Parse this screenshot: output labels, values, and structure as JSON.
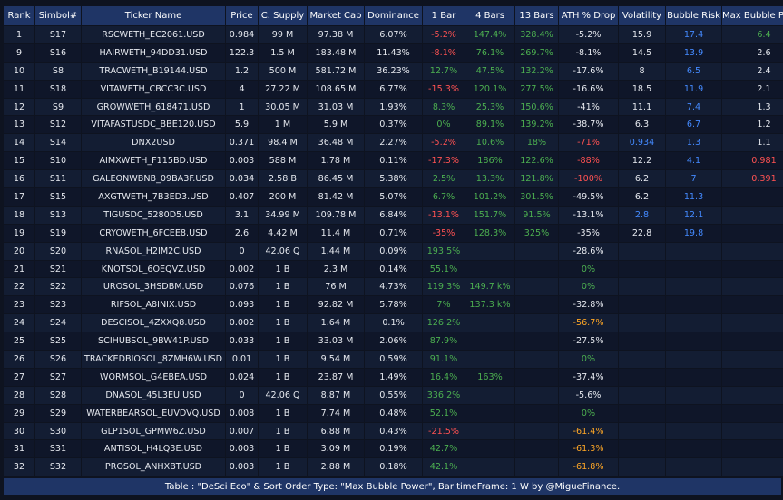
{
  "headers": [
    "Rank",
    "Simbol#",
    "Ticker Name",
    "Price",
    "C. Supply",
    "Market Cap",
    "Dominance",
    "1 Bar",
    "4 Bars",
    "13 Bars",
    "ATH % Drop",
    "Volatility",
    "Bubble Risk",
    "Max Bubble Power"
  ],
  "rows": [
    {
      "rank": "1",
      "sym": "S17",
      "name": "RSCWETH_EC2061.USD",
      "price": "0.984",
      "supply": "99 M",
      "mcap": "97.38 M",
      "dom": "6.07%",
      "b1": "-5.2%",
      "b1c": "neg",
      "b4": "147.4%",
      "b4c": "pos",
      "b13": "328.4%",
      "b13c": "pos",
      "ath": "-5.2%",
      "athc": "wht",
      "vol": "15.9",
      "volc": "wht",
      "risk": "17.4",
      "riskc": "blue",
      "power": "6.4",
      "powerc": "pos"
    },
    {
      "rank": "9",
      "sym": "S16",
      "name": "HAIRWETH_94DD31.USD",
      "price": "122.3",
      "supply": "1.5 M",
      "mcap": "183.48 M",
      "dom": "11.43%",
      "b1": "-8.1%",
      "b1c": "neg",
      "b4": "76.1%",
      "b4c": "pos",
      "b13": "269.7%",
      "b13c": "pos",
      "ath": "-8.1%",
      "athc": "wht",
      "vol": "14.5",
      "volc": "wht",
      "risk": "13.9",
      "riskc": "blue",
      "power": "2.6",
      "powerc": "wht"
    },
    {
      "rank": "10",
      "sym": "S8",
      "name": "TRACWETH_B19144.USD",
      "price": "1.2",
      "supply": "500 M",
      "mcap": "581.72 M",
      "dom": "36.23%",
      "b1": "12.7%",
      "b1c": "pos",
      "b4": "47.5%",
      "b4c": "pos",
      "b13": "132.2%",
      "b13c": "pos",
      "ath": "-17.6%",
      "athc": "wht",
      "vol": "8",
      "volc": "wht",
      "risk": "6.5",
      "riskc": "blue",
      "power": "2.4",
      "powerc": "wht"
    },
    {
      "rank": "11",
      "sym": "S18",
      "name": "VITAWETH_CBCC3C.USD",
      "price": "4",
      "supply": "27.22 M",
      "mcap": "108.65 M",
      "dom": "6.77%",
      "b1": "-15.3%",
      "b1c": "neg",
      "b4": "120.1%",
      "b4c": "pos",
      "b13": "277.5%",
      "b13c": "pos",
      "ath": "-16.6%",
      "athc": "wht",
      "vol": "18.5",
      "volc": "wht",
      "risk": "11.9",
      "riskc": "blue",
      "power": "2.1",
      "powerc": "wht"
    },
    {
      "rank": "12",
      "sym": "S9",
      "name": "GROWWETH_618471.USD",
      "price": "1",
      "supply": "30.05 M",
      "mcap": "31.03 M",
      "dom": "1.93%",
      "b1": "8.3%",
      "b1c": "pos",
      "b4": "25.3%",
      "b4c": "pos",
      "b13": "150.6%",
      "b13c": "pos",
      "ath": "-41%",
      "athc": "wht",
      "vol": "11.1",
      "volc": "wht",
      "risk": "7.4",
      "riskc": "blue",
      "power": "1.3",
      "powerc": "wht"
    },
    {
      "rank": "13",
      "sym": "S12",
      "name": "VITAFASTUSDC_BBE120.USD",
      "price": "5.9",
      "supply": "1 M",
      "mcap": "5.9 M",
      "dom": "0.37%",
      "b1": "0%",
      "b1c": "pos",
      "b4": "89.1%",
      "b4c": "pos",
      "b13": "139.2%",
      "b13c": "pos",
      "ath": "-38.7%",
      "athc": "wht",
      "vol": "6.3",
      "volc": "wht",
      "risk": "6.7",
      "riskc": "blue",
      "power": "1.2",
      "powerc": "wht"
    },
    {
      "rank": "14",
      "sym": "S14",
      "name": "DNX2USD",
      "price": "0.371",
      "supply": "98.4 M",
      "mcap": "36.48 M",
      "dom": "2.27%",
      "b1": "-5.2%",
      "b1c": "neg",
      "b4": "10.6%",
      "b4c": "pos",
      "b13": "18%",
      "b13c": "pos",
      "ath": "-71%",
      "athc": "red",
      "vol": "0.934",
      "volc": "blue",
      "risk": "1.3",
      "riskc": "blue",
      "power": "1.1",
      "powerc": "wht"
    },
    {
      "rank": "15",
      "sym": "S10",
      "name": "AIMXWETH_F115BD.USD",
      "price": "0.003",
      "supply": "588 M",
      "mcap": "1.78 M",
      "dom": "0.11%",
      "b1": "-17.3%",
      "b1c": "neg",
      "b4": "186%",
      "b4c": "pos",
      "b13": "122.6%",
      "b13c": "pos",
      "ath": "-88%",
      "athc": "red",
      "vol": "12.2",
      "volc": "wht",
      "risk": "4.1",
      "riskc": "blue",
      "power": "0.981",
      "powerc": "red"
    },
    {
      "rank": "16",
      "sym": "S11",
      "name": "GALEONWBNB_09BA3F.USD",
      "price": "0.034",
      "supply": "2.58 B",
      "mcap": "86.45 M",
      "dom": "5.38%",
      "b1": "2.5%",
      "b1c": "pos",
      "b4": "13.3%",
      "b4c": "pos",
      "b13": "121.8%",
      "b13c": "pos",
      "ath": "-100%",
      "athc": "red",
      "vol": "6.2",
      "volc": "wht",
      "risk": "7",
      "riskc": "blue",
      "power": "0.391",
      "powerc": "red"
    },
    {
      "rank": "17",
      "sym": "S15",
      "name": "AXGTWETH_7B3ED3.USD",
      "price": "0.407",
      "supply": "200 M",
      "mcap": "81.42 M",
      "dom": "5.07%",
      "b1": "6.7%",
      "b1c": "pos",
      "b4": "101.2%",
      "b4c": "pos",
      "b13": "301.5%",
      "b13c": "pos",
      "ath": "-49.5%",
      "athc": "wht",
      "vol": "6.2",
      "volc": "wht",
      "risk": "11.3",
      "riskc": "blue",
      "power": "",
      "powerc": "empty"
    },
    {
      "rank": "18",
      "sym": "S13",
      "name": "TIGUSDC_5280D5.USD",
      "price": "3.1",
      "supply": "34.99 M",
      "mcap": "109.78 M",
      "dom": "6.84%",
      "b1": "-13.1%",
      "b1c": "neg",
      "b4": "151.7%",
      "b4c": "pos",
      "b13": "91.5%",
      "b13c": "pos",
      "ath": "-13.1%",
      "athc": "wht",
      "vol": "2.8",
      "volc": "blue",
      "risk": "12.1",
      "riskc": "blue",
      "power": "",
      "powerc": "empty"
    },
    {
      "rank": "19",
      "sym": "S19",
      "name": "CRYOWETH_6FCEE8.USD",
      "price": "2.6",
      "supply": "4.42 M",
      "mcap": "11.4 M",
      "dom": "0.71%",
      "b1": "-35%",
      "b1c": "neg",
      "b4": "128.3%",
      "b4c": "pos",
      "b13": "325%",
      "b13c": "pos",
      "ath": "-35%",
      "athc": "wht",
      "vol": "22.8",
      "volc": "wht",
      "risk": "19.8",
      "riskc": "blue",
      "power": "",
      "powerc": "empty"
    },
    {
      "rank": "20",
      "sym": "S20",
      "name": "RNASOL_H2IM2C.USD",
      "price": "0",
      "supply": "42.06 Q",
      "mcap": "1.44 M",
      "dom": "0.09%",
      "b1": "193.5%",
      "b1c": "pos",
      "b4": "",
      "b4c": "empty",
      "b13": "",
      "b13c": "empty",
      "ath": "-28.6%",
      "athc": "wht",
      "vol": "",
      "volc": "empty",
      "risk": "",
      "riskc": "empty",
      "power": "",
      "powerc": "empty"
    },
    {
      "rank": "21",
      "sym": "S21",
      "name": "KNOTSOL_6OEQVZ.USD",
      "price": "0.002",
      "supply": "1 B",
      "mcap": "2.3 M",
      "dom": "0.14%",
      "b1": "55.1%",
      "b1c": "pos",
      "b4": "",
      "b4c": "empty",
      "b13": "",
      "b13c": "empty",
      "ath": "0%",
      "athc": "pos",
      "vol": "",
      "volc": "empty",
      "risk": "",
      "riskc": "empty",
      "power": "",
      "powerc": "empty"
    },
    {
      "rank": "22",
      "sym": "S22",
      "name": "UROSOL_3HSDBM.USD",
      "price": "0.076",
      "supply": "1 B",
      "mcap": "76 M",
      "dom": "4.73%",
      "b1": "119.3%",
      "b1c": "pos",
      "b4": "149.7 k%",
      "b4c": "pos",
      "b13": "",
      "b13c": "empty",
      "ath": "0%",
      "athc": "pos",
      "vol": "",
      "volc": "empty",
      "risk": "",
      "riskc": "empty",
      "power": "",
      "powerc": "empty"
    },
    {
      "rank": "23",
      "sym": "S23",
      "name": "RIFSOL_A8INIX.USD",
      "price": "0.093",
      "supply": "1 B",
      "mcap": "92.82 M",
      "dom": "5.78%",
      "b1": "7%",
      "b1c": "pos",
      "b4": "137.3 k%",
      "b4c": "pos",
      "b13": "",
      "b13c": "empty",
      "ath": "-32.8%",
      "athc": "wht",
      "vol": "",
      "volc": "empty",
      "risk": "",
      "riskc": "empty",
      "power": "",
      "powerc": "empty"
    },
    {
      "rank": "24",
      "sym": "S24",
      "name": "DESCISOL_4ZXXQ8.USD",
      "price": "0.002",
      "supply": "1 B",
      "mcap": "1.64 M",
      "dom": "0.1%",
      "b1": "126.2%",
      "b1c": "pos",
      "b4": "",
      "b4c": "empty",
      "b13": "",
      "b13c": "empty",
      "ath": "-56.7%",
      "athc": "orange",
      "vol": "",
      "volc": "empty",
      "risk": "",
      "riskc": "empty",
      "power": "",
      "powerc": "empty"
    },
    {
      "rank": "25",
      "sym": "S25",
      "name": "SCIHUBSOL_9BW41P.USD",
      "price": "0.033",
      "supply": "1 B",
      "mcap": "33.03 M",
      "dom": "2.06%",
      "b1": "87.9%",
      "b1c": "pos",
      "b4": "",
      "b4c": "empty",
      "b13": "",
      "b13c": "empty",
      "ath": "-27.5%",
      "athc": "wht",
      "vol": "",
      "volc": "empty",
      "risk": "",
      "riskc": "empty",
      "power": "",
      "powerc": "empty"
    },
    {
      "rank": "26",
      "sym": "S26",
      "name": "TRACKEDBIOSOL_8ZMH6W.USD",
      "price": "0.01",
      "supply": "1 B",
      "mcap": "9.54 M",
      "dom": "0.59%",
      "b1": "91.1%",
      "b1c": "pos",
      "b4": "",
      "b4c": "empty",
      "b13": "",
      "b13c": "empty",
      "ath": "0%",
      "athc": "pos",
      "vol": "",
      "volc": "empty",
      "risk": "",
      "riskc": "empty",
      "power": "",
      "powerc": "empty"
    },
    {
      "rank": "27",
      "sym": "S27",
      "name": "WORMSOL_G4EBEA.USD",
      "price": "0.024",
      "supply": "1 B",
      "mcap": "23.87 M",
      "dom": "1.49%",
      "b1": "16.4%",
      "b1c": "pos",
      "b4": "163%",
      "b4c": "pos",
      "b13": "",
      "b13c": "empty",
      "ath": "-37.4%",
      "athc": "wht",
      "vol": "",
      "volc": "empty",
      "risk": "",
      "riskc": "empty",
      "power": "",
      "powerc": "empty"
    },
    {
      "rank": "28",
      "sym": "S28",
      "name": "DNASOL_45L3EU.USD",
      "price": "0",
      "supply": "42.06 Q",
      "mcap": "8.87 M",
      "dom": "0.55%",
      "b1": "336.2%",
      "b1c": "pos",
      "b4": "",
      "b4c": "empty",
      "b13": "",
      "b13c": "empty",
      "ath": "-5.6%",
      "athc": "wht",
      "vol": "",
      "volc": "empty",
      "risk": "",
      "riskc": "empty",
      "power": "",
      "powerc": "empty"
    },
    {
      "rank": "29",
      "sym": "S29",
      "name": "WATERBEARSOL_EUVDVQ.USD",
      "price": "0.008",
      "supply": "1 B",
      "mcap": "7.74 M",
      "dom": "0.48%",
      "b1": "52.1%",
      "b1c": "pos",
      "b4": "",
      "b4c": "empty",
      "b13": "",
      "b13c": "empty",
      "ath": "0%",
      "athc": "pos",
      "vol": "",
      "volc": "empty",
      "risk": "",
      "riskc": "empty",
      "power": "",
      "powerc": "empty"
    },
    {
      "rank": "30",
      "sym": "S30",
      "name": "GLP1SOL_GPMW6Z.USD",
      "price": "0.007",
      "supply": "1 B",
      "mcap": "6.88 M",
      "dom": "0.43%",
      "b1": "-21.5%",
      "b1c": "neg",
      "b4": "",
      "b4c": "empty",
      "b13": "",
      "b13c": "empty",
      "ath": "-61.4%",
      "athc": "orange",
      "vol": "",
      "volc": "empty",
      "risk": "",
      "riskc": "empty",
      "power": "",
      "powerc": "empty"
    },
    {
      "rank": "31",
      "sym": "S31",
      "name": "ANTISOL_H4LQ3E.USD",
      "price": "0.003",
      "supply": "1 B",
      "mcap": "3.09 M",
      "dom": "0.19%",
      "b1": "42.7%",
      "b1c": "pos",
      "b4": "",
      "b4c": "empty",
      "b13": "",
      "b13c": "empty",
      "ath": "-61.3%",
      "athc": "orange",
      "vol": "",
      "volc": "empty",
      "risk": "",
      "riskc": "empty",
      "power": "",
      "powerc": "empty"
    },
    {
      "rank": "32",
      "sym": "S32",
      "name": "PROSOL_ANHXBT.USD",
      "price": "0.003",
      "supply": "1 B",
      "mcap": "2.88 M",
      "dom": "0.18%",
      "b1": "42.1%",
      "b1c": "pos",
      "b4": "",
      "b4c": "empty",
      "b13": "",
      "b13c": "empty",
      "ath": "-61.8%",
      "athc": "orange",
      "vol": "",
      "volc": "empty",
      "risk": "",
      "riskc": "empty",
      "power": "",
      "powerc": "empty"
    }
  ],
  "footer": "Table : \"DeSci Eco\" & Sort Order Type: \"Max Bubble Power\", Bar timeFrame: 1 W by @MigueFinance."
}
